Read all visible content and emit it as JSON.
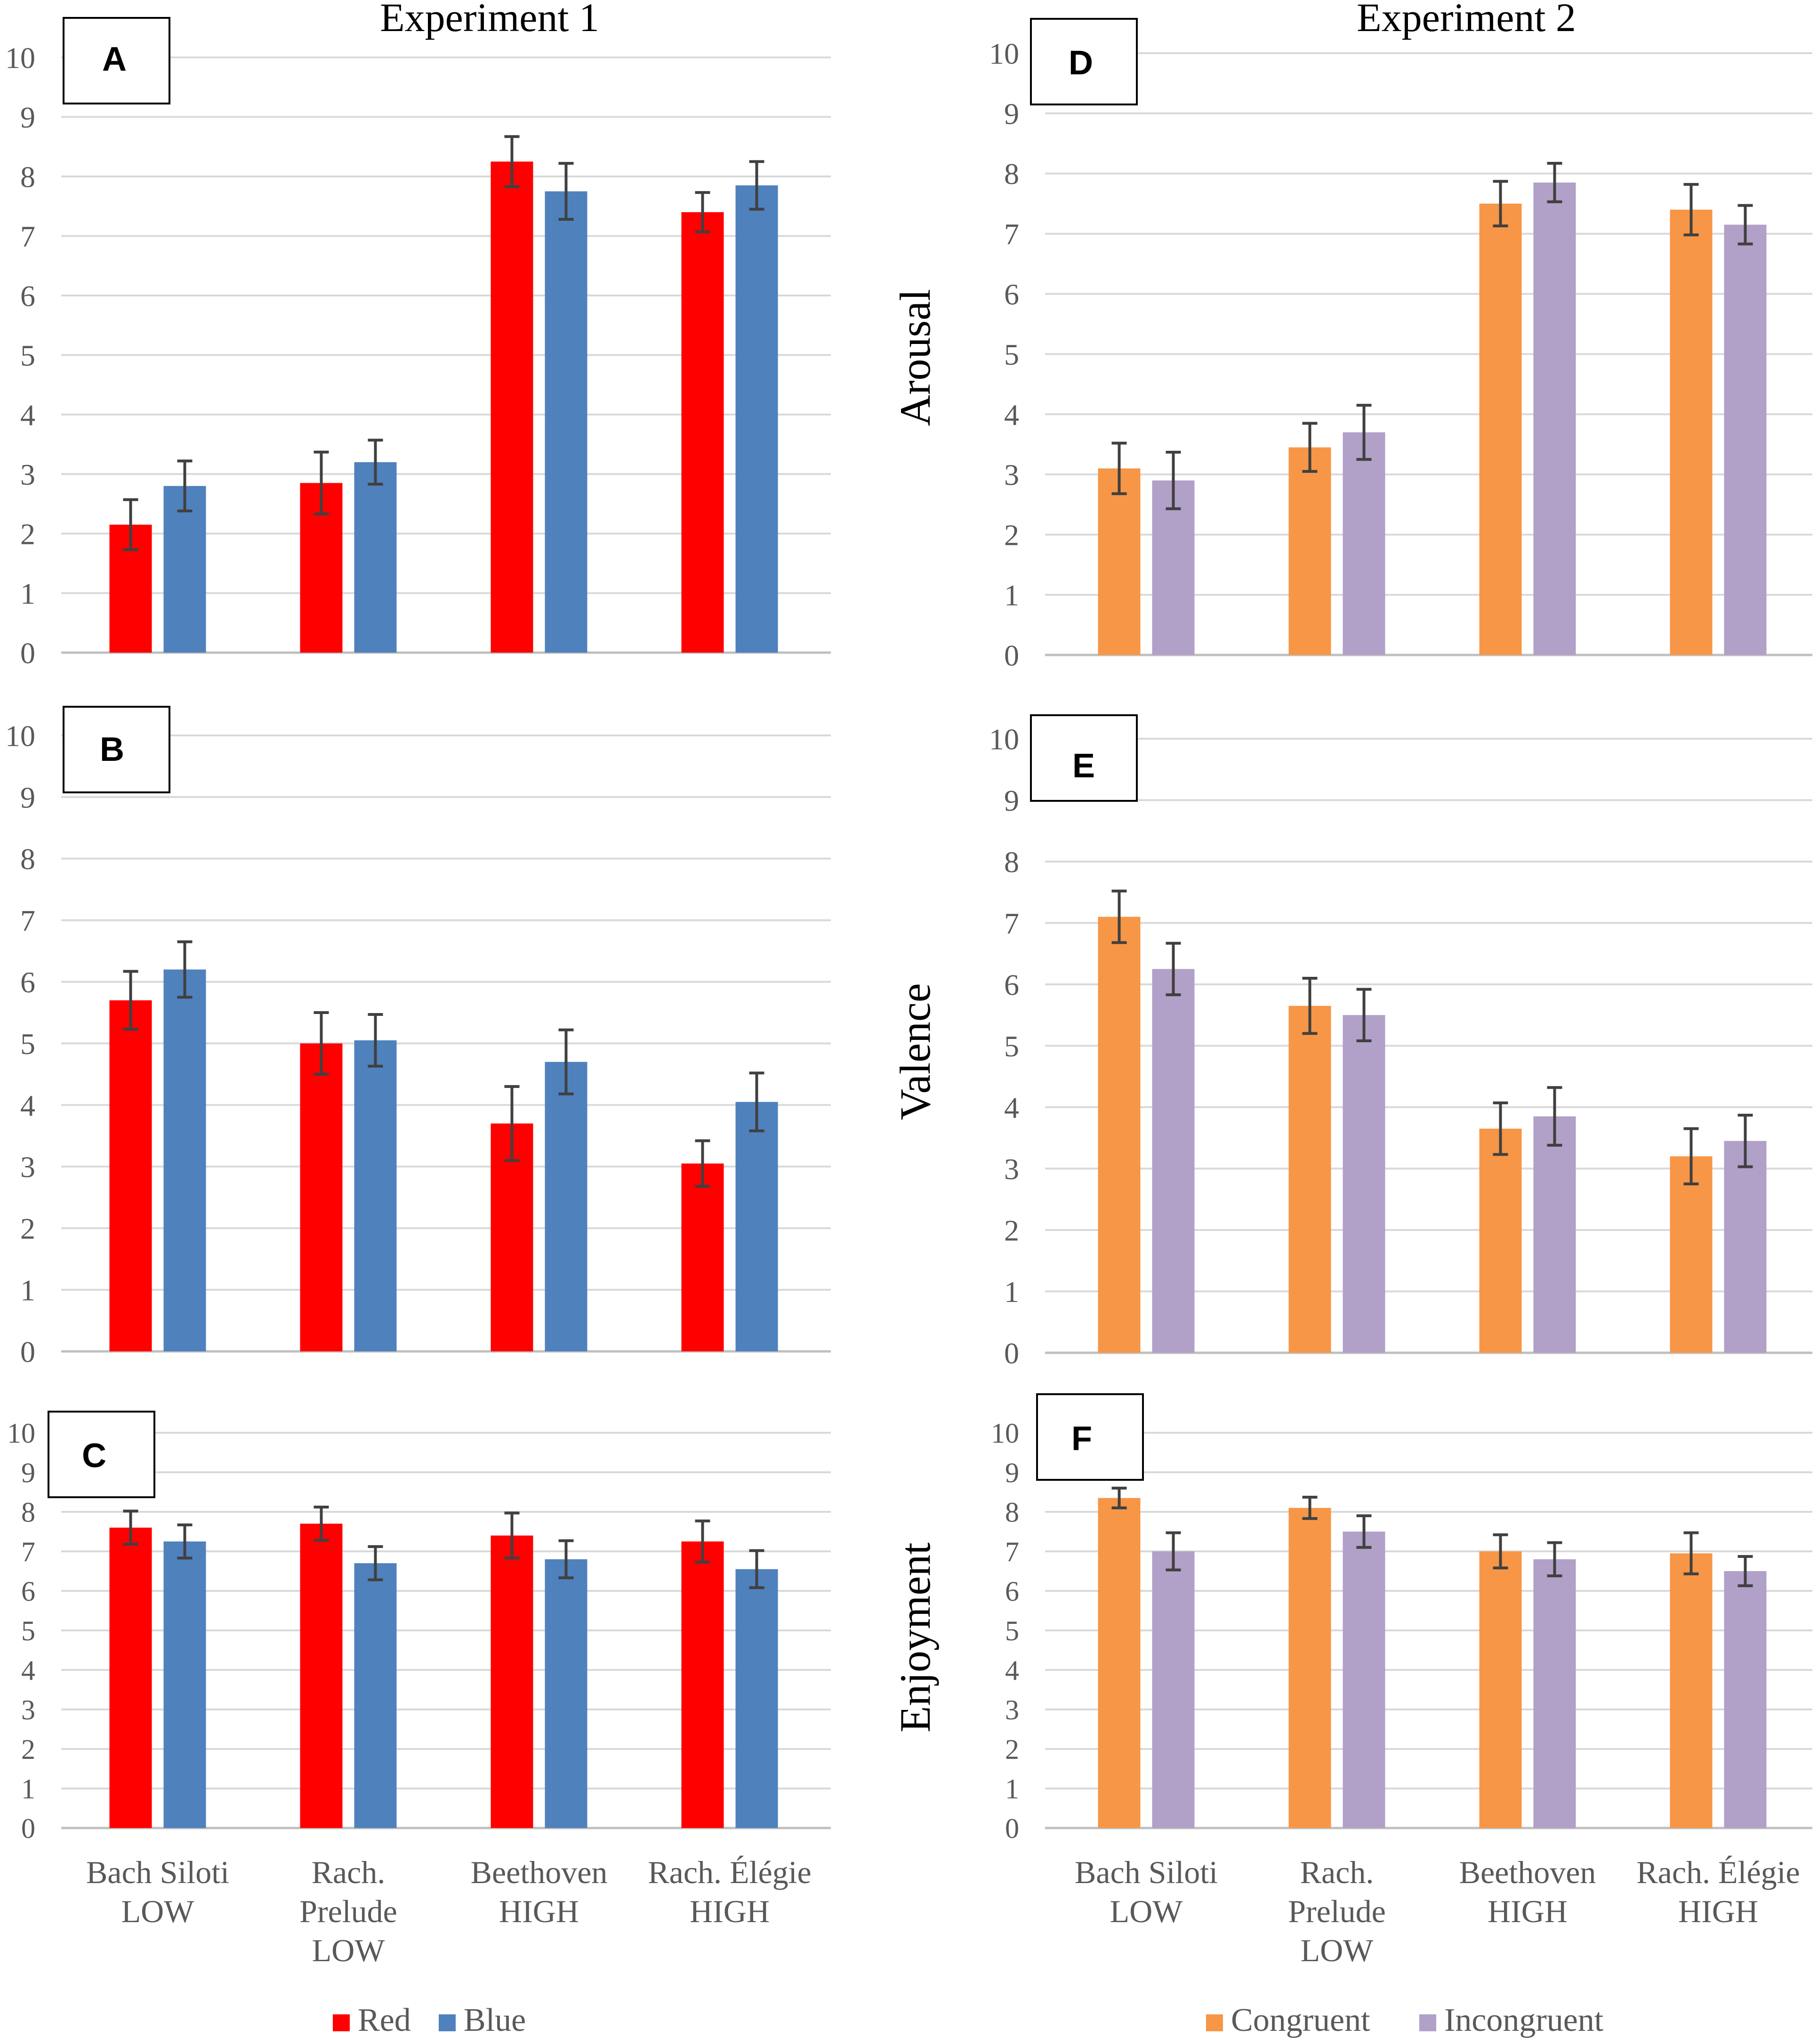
{
  "experiments": [
    {
      "title": "Experiment 1",
      "legend": [
        "Red",
        "Blue"
      ],
      "colors": [
        "#ff0000",
        "#4f81bd"
      ]
    },
    {
      "title": "Experiment 2",
      "legend": [
        "Congruent",
        "Incongruent"
      ],
      "colors": [
        "#f79646",
        "#b1a0c7"
      ]
    }
  ],
  "y_axis_labels": [
    "Arousal",
    "Valence",
    "Enjoyment"
  ],
  "categories": [
    "Bach Siloti\nLOW",
    "Rach.\nPrelude\nLOW",
    "Beethoven\nHIGH",
    "Rach. Élégie\nHIGH"
  ],
  "error_color": "#404040",
  "chart_data": [
    {
      "panel": "A",
      "type": "bar",
      "experiment": "Experiment 1",
      "measure": "Arousal",
      "ylim": [
        0,
        10
      ],
      "yticks": [
        0,
        1,
        2,
        3,
        4,
        5,
        6,
        7,
        8,
        9,
        10
      ],
      "series": [
        {
          "name": "Red",
          "values": [
            2.15,
            2.85,
            8.25,
            7.4
          ],
          "errors": [
            0.42,
            0.52,
            0.42,
            0.33
          ]
        },
        {
          "name": "Blue",
          "values": [
            2.8,
            3.2,
            7.75,
            7.85
          ],
          "errors": [
            0.42,
            0.37,
            0.47,
            0.4
          ]
        }
      ]
    },
    {
      "panel": "B",
      "type": "bar",
      "experiment": "Experiment 1",
      "measure": "Valence",
      "ylim": [
        0,
        10
      ],
      "yticks": [
        0,
        1,
        2,
        3,
        4,
        5,
        6,
        7,
        8,
        9,
        10
      ],
      "series": [
        {
          "name": "Red",
          "values": [
            5.7,
            5.0,
            3.7,
            3.05
          ],
          "errors": [
            0.47,
            0.5,
            0.6,
            0.37
          ]
        },
        {
          "name": "Blue",
          "values": [
            6.2,
            5.05,
            4.7,
            4.05
          ],
          "errors": [
            0.45,
            0.42,
            0.52,
            0.47
          ]
        }
      ]
    },
    {
      "panel": "C",
      "type": "bar",
      "experiment": "Experiment 1",
      "measure": "Enjoyment",
      "ylim": [
        0,
        10
      ],
      "yticks": [
        0,
        1,
        2,
        3,
        4,
        5,
        6,
        7,
        8,
        9,
        10
      ],
      "series": [
        {
          "name": "Red",
          "values": [
            7.6,
            7.7,
            7.4,
            7.25
          ],
          "errors": [
            0.42,
            0.42,
            0.57,
            0.52
          ]
        },
        {
          "name": "Blue",
          "values": [
            7.25,
            6.7,
            6.8,
            6.55
          ],
          "errors": [
            0.42,
            0.42,
            0.47,
            0.47
          ]
        }
      ]
    },
    {
      "panel": "D",
      "type": "bar",
      "experiment": "Experiment 2",
      "measure": "Arousal",
      "ylim": [
        0,
        10
      ],
      "yticks": [
        0,
        1,
        2,
        3,
        4,
        5,
        6,
        7,
        8,
        9,
        10
      ],
      "series": [
        {
          "name": "Congruent",
          "values": [
            3.1,
            3.45,
            7.5,
            7.4
          ],
          "errors": [
            0.42,
            0.4,
            0.37,
            0.42
          ]
        },
        {
          "name": "Incongruent",
          "values": [
            2.9,
            3.7,
            7.85,
            7.15
          ],
          "errors": [
            0.47,
            0.45,
            0.32,
            0.32
          ]
        }
      ]
    },
    {
      "panel": "E",
      "type": "bar",
      "experiment": "Experiment 2",
      "measure": "Valence",
      "ylim": [
        0,
        10
      ],
      "yticks": [
        0,
        1,
        2,
        3,
        4,
        5,
        6,
        7,
        8,
        9,
        10
      ],
      "series": [
        {
          "name": "Congruent",
          "values": [
            7.1,
            5.65,
            3.65,
            3.2
          ],
          "errors": [
            0.42,
            0.45,
            0.42,
            0.45
          ]
        },
        {
          "name": "Incongruent",
          "values": [
            6.25,
            5.5,
            3.85,
            3.45
          ],
          "errors": [
            0.42,
            0.42,
            0.47,
            0.42
          ]
        }
      ]
    },
    {
      "panel": "F",
      "type": "bar",
      "experiment": "Experiment 2",
      "measure": "Enjoyment",
      "ylim": [
        0,
        10
      ],
      "yticks": [
        0,
        1,
        2,
        3,
        4,
        5,
        6,
        7,
        8,
        9,
        10
      ],
      "series": [
        {
          "name": "Congruent",
          "values": [
            8.35,
            8.1,
            7.0,
            6.95
          ],
          "errors": [
            0.25,
            0.27,
            0.42,
            0.52
          ]
        },
        {
          "name": "Incongruent",
          "values": [
            7.0,
            7.5,
            6.8,
            6.5
          ],
          "errors": [
            0.47,
            0.4,
            0.42,
            0.37
          ]
        }
      ]
    }
  ]
}
